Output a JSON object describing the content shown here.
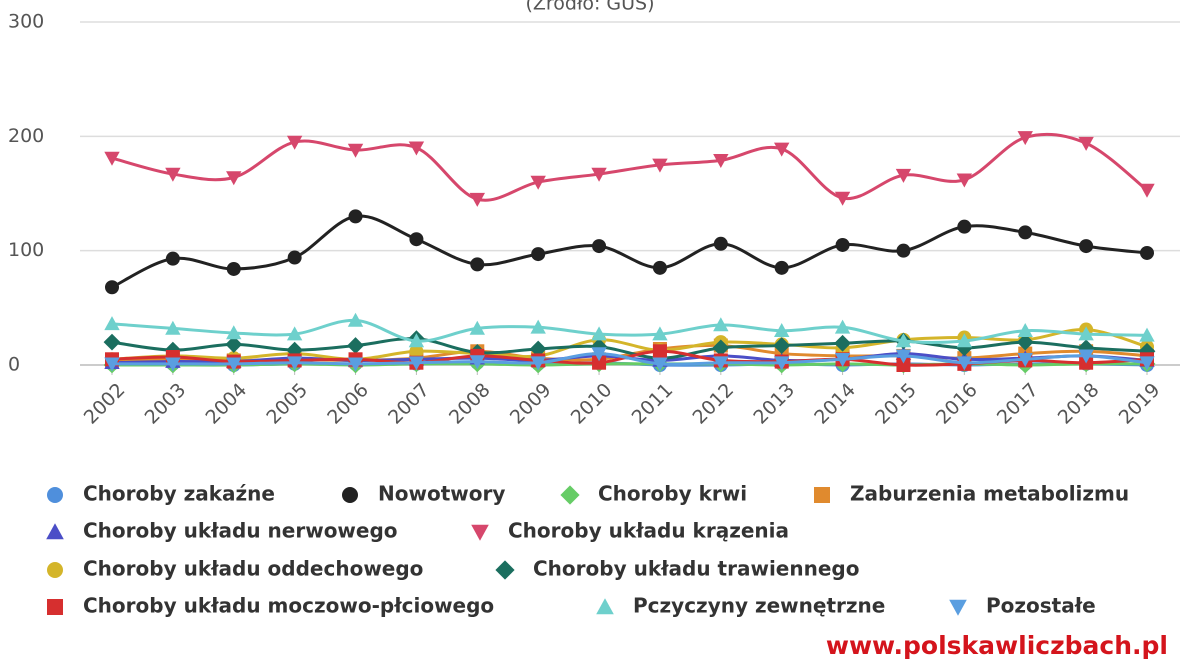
{
  "chart_data": {
    "type": "line",
    "subtitle": "(Źródło: GUS)",
    "categories": [
      "2002",
      "2003",
      "2004",
      "2005",
      "2006",
      "2007",
      "2008",
      "2009",
      "2010",
      "2011",
      "2012",
      "2013",
      "2014",
      "2015",
      "2016",
      "2017",
      "2018",
      "2019"
    ],
    "ylim": [
      0,
      300
    ],
    "yticks": [
      0,
      100,
      200,
      300
    ],
    "grid": true,
    "series": [
      {
        "name": "Choroby zakaźne",
        "color": "#4f8fdc",
        "marker": "circle",
        "values": [
          1,
          1,
          0,
          1,
          1,
          1,
          2,
          1,
          2,
          0,
          0,
          1,
          0,
          1,
          0,
          1,
          1,
          0
        ]
      },
      {
        "name": "Nowotwory",
        "color": "#222222",
        "marker": "circle",
        "values": [
          68,
          93,
          84,
          94,
          130,
          110,
          88,
          97,
          104,
          85,
          106,
          85,
          105,
          100,
          121,
          116,
          104,
          98
        ]
      },
      {
        "name": "Choroby krwi",
        "color": "#66cc66",
        "marker": "diamond",
        "values": [
          0,
          0,
          0,
          1,
          0,
          1,
          1,
          0,
          1,
          1,
          1,
          0,
          1,
          0,
          1,
          0,
          1,
          1
        ]
      },
      {
        "name": "Zaburzenia metabolizmu",
        "color": "#e08a2e",
        "marker": "square",
        "values": [
          4,
          5,
          4,
          5,
          4,
          6,
          12,
          6,
          5,
          14,
          17,
          10,
          8,
          8,
          6,
          10,
          12,
          8
        ]
      },
      {
        "name": "Choroby układu nerwowego",
        "color": "#4b4ec7",
        "marker": "triangle",
        "values": [
          2,
          3,
          3,
          6,
          4,
          5,
          6,
          4,
          8,
          4,
          8,
          4,
          5,
          10,
          5,
          6,
          8,
          4
        ]
      },
      {
        "name": "Choroby układu krązenia",
        "color": "#d6476c",
        "marker": "triangle-down",
        "values": [
          181,
          167,
          164,
          195,
          188,
          190,
          145,
          160,
          167,
          175,
          179,
          189,
          146,
          166,
          162,
          199,
          194,
          153
        ]
      },
      {
        "name": "Choroby układu oddechowego",
        "color": "#d4b52a",
        "marker": "circle",
        "values": [
          5,
          8,
          6,
          10,
          5,
          12,
          10,
          8,
          22,
          13,
          20,
          18,
          15,
          22,
          24,
          22,
          31,
          16
        ]
      },
      {
        "name": "Choroby układu trawiennego",
        "color": "#1b6e5f",
        "marker": "diamond",
        "values": [
          20,
          13,
          18,
          13,
          17,
          23,
          11,
          14,
          16,
          6,
          15,
          17,
          19,
          21,
          15,
          20,
          15,
          12
        ]
      },
      {
        "name": "Choroby układu moczowo-płciowego",
        "color": "#d62f2f",
        "marker": "square",
        "values": [
          5,
          7,
          3,
          4,
          5,
          2,
          8,
          4,
          2,
          12,
          4,
          3,
          5,
          0,
          1,
          4,
          2,
          5
        ]
      },
      {
        "name": "Pczyczyny zewnętrzne",
        "color": "#6ed0cc",
        "marker": "triangle",
        "values": [
          36,
          32,
          28,
          27,
          39,
          21,
          32,
          33,
          27,
          27,
          35,
          30,
          33,
          21,
          21,
          30,
          27,
          26
        ]
      },
      {
        "name": "Pozostałe",
        "color": "#5a9ee0",
        "marker": "triangle-down",
        "values": [
          1,
          1,
          1,
          2,
          1,
          2,
          3,
          2,
          10,
          1,
          2,
          2,
          5,
          8,
          2,
          5,
          8,
          2
        ]
      }
    ],
    "watermark": "www.polskawliczbach.pl"
  }
}
